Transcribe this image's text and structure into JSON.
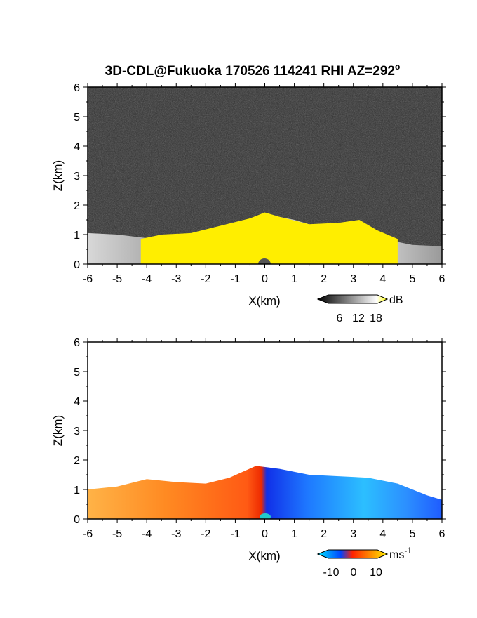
{
  "chart_data": [
    {
      "type": "heatmap",
      "title": "3D-CDL@Fukuoka 170526 114241 RHI AZ=292",
      "title_superscript": "o",
      "xlabel": "X(km)",
      "ylabel": "Z(km)",
      "xlim": [
        -6,
        6
      ],
      "ylim": [
        0,
        6
      ],
      "x_ticks": [
        "-6",
        "-5",
        "-4",
        "-3",
        "-2",
        "-1",
        "0",
        "1",
        "2",
        "3",
        "4",
        "5",
        "6"
      ],
      "y_ticks": [
        "0",
        "1",
        "2",
        "3",
        "4",
        "5",
        "6"
      ],
      "colorbar": {
        "label": "dB",
        "ticks": [
          "6",
          "12",
          "18"
        ],
        "colors": [
          "#000000",
          "#ffffff",
          "#ffff00"
        ]
      },
      "fields": {
        "noise_color": "#2e2e2e",
        "saturated_color": "#ffee00",
        "backscatter_top": [
          [
            -6,
            1.05
          ],
          [
            -5,
            1.0
          ],
          [
            -4,
            0.88
          ],
          [
            -3,
            0.82
          ],
          [
            -2,
            0.9
          ],
          [
            -1,
            1.3
          ],
          [
            0,
            1.7
          ],
          [
            1,
            1.5
          ],
          [
            2,
            1.2
          ],
          [
            3,
            1.35
          ],
          [
            4,
            0.85
          ],
          [
            5,
            0.65
          ],
          [
            6,
            0.6
          ]
        ],
        "saturated_top": [
          [
            -4.2,
            0.85
          ],
          [
            -3.5,
            1.0
          ],
          [
            -2.5,
            1.05
          ],
          [
            -1.5,
            1.3
          ],
          [
            -0.5,
            1.55
          ],
          [
            0,
            1.75
          ],
          [
            0.5,
            1.6
          ],
          [
            1.5,
            1.35
          ],
          [
            2.5,
            1.4
          ],
          [
            3.2,
            1.5
          ],
          [
            3.8,
            1.15
          ],
          [
            4.5,
            0.85
          ]
        ]
      }
    },
    {
      "type": "heatmap",
      "xlabel": "X(km)",
      "ylabel": "Z(km)",
      "xlim": [
        -6,
        6
      ],
      "ylim": [
        0,
        6
      ],
      "x_ticks": [
        "-6",
        "-5",
        "-4",
        "-3",
        "-2",
        "-1",
        "0",
        "1",
        "2",
        "3",
        "4",
        "5",
        "6"
      ],
      "y_ticks": [
        "0",
        "1",
        "2",
        "3",
        "4",
        "5",
        "6"
      ],
      "colorbar": {
        "label": "ms",
        "label_superscript": "-1",
        "ticks": [
          "-10",
          "0",
          "10"
        ],
        "colors": [
          "#00e5ff",
          "#0044ff",
          "#ff2200",
          "#ffee00"
        ]
      },
      "fields": {
        "echo_top": [
          [
            -6,
            1.0
          ],
          [
            -5,
            1.1
          ],
          [
            -4,
            1.35
          ],
          [
            -3,
            1.25
          ],
          [
            -2,
            1.2
          ],
          [
            -1.2,
            1.4
          ],
          [
            -0.3,
            1.8
          ],
          [
            0.5,
            1.7
          ],
          [
            1.5,
            1.5
          ],
          [
            2.5,
            1.45
          ],
          [
            3.5,
            1.4
          ],
          [
            4.5,
            1.2
          ],
          [
            5.5,
            0.8
          ],
          [
            6,
            0.65
          ]
        ],
        "receding_color": "#ff5500",
        "approaching_color": "#1e6bff"
      }
    }
  ]
}
